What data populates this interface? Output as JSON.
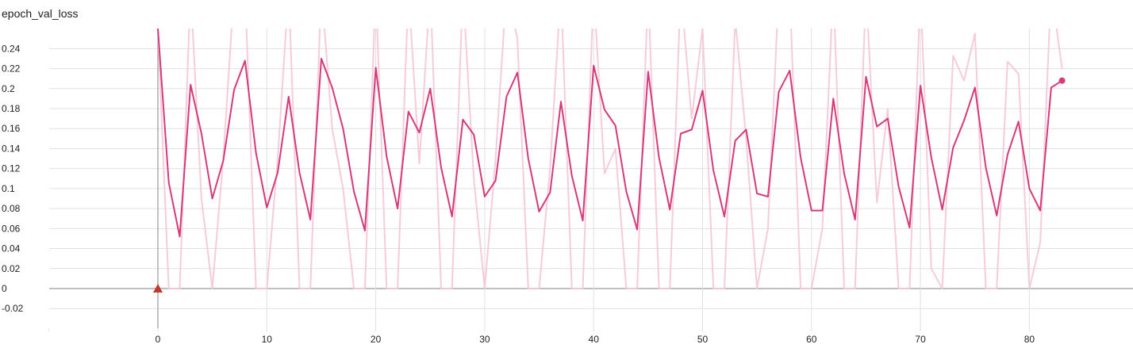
{
  "chart_data": {
    "type": "line",
    "title": "epoch_val_loss",
    "xlabel": "",
    "ylabel": "",
    "xlim": [
      -10,
      90
    ],
    "ylim": [
      -0.04,
      0.26
    ],
    "x_ticks": [
      0,
      10,
      20,
      30,
      40,
      50,
      60,
      70,
      80
    ],
    "y_ticks": [
      -0.02,
      0,
      0.02,
      0.04,
      0.06,
      0.08,
      0.1,
      0.12,
      0.14,
      0.16,
      0.18,
      0.2,
      0.22,
      0.24
    ],
    "y_tick_labels": [
      "-0.02",
      "0",
      "0.02",
      "0.04",
      "0.06",
      "0.08",
      "0.1",
      "0.12",
      "0.14",
      "0.16",
      "0.18",
      "0.2",
      "0.22",
      "0.24"
    ],
    "grid": true,
    "colors": {
      "smoothed": "#d63a79",
      "raw": "#f5c6d6",
      "axis": "#999999",
      "grid": "#e0e0e0",
      "marker": "#c0392b"
    },
    "series": [
      {
        "role": "smoothed",
        "x": [
          0,
          1,
          2,
          3,
          4,
          5,
          6,
          7,
          8,
          9,
          10,
          11,
          12,
          13,
          14,
          15,
          16,
          17,
          18,
          19,
          20,
          21,
          22,
          23,
          24,
          25,
          26,
          27,
          28,
          29,
          30,
          31,
          32,
          33,
          34,
          35,
          36,
          37,
          38,
          39,
          40,
          41,
          42,
          43,
          44,
          45,
          46,
          47,
          48,
          49,
          50,
          51,
          52,
          53,
          54,
          55,
          56,
          57,
          58,
          59,
          60,
          61,
          62,
          63,
          64,
          65,
          66,
          67,
          68,
          69,
          70,
          71,
          72,
          73,
          74,
          75,
          76,
          77,
          78,
          79,
          80,
          81,
          82,
          83
        ],
        "values": [
          0.26,
          0.106,
          0.052,
          0.204,
          0.155,
          0.09,
          0.128,
          0.199,
          0.228,
          0.136,
          0.081,
          0.116,
          0.192,
          0.116,
          0.069,
          0.23,
          0.201,
          0.16,
          0.097,
          0.058,
          0.221,
          0.132,
          0.08,
          0.177,
          0.156,
          0.2,
          0.121,
          0.072,
          0.169,
          0.154,
          0.092,
          0.108,
          0.192,
          0.216,
          0.13,
          0.077,
          0.096,
          0.187,
          0.113,
          0.068,
          0.223,
          0.179,
          0.163,
          0.097,
          0.059,
          0.217,
          0.131,
          0.079,
          0.155,
          0.159,
          0.198,
          0.118,
          0.072,
          0.148,
          0.159,
          0.095,
          0.092,
          0.197,
          0.218,
          0.131,
          0.078,
          0.078,
          0.19,
          0.115,
          0.069,
          0.212,
          0.162,
          0.17,
          0.102,
          0.061,
          0.203,
          0.131,
          0.079,
          0.141,
          0.168,
          0.201,
          0.121,
          0.073,
          0.134,
          0.167,
          0.1,
          0.078,
          0.201,
          0.208
        ]
      },
      {
        "role": "raw",
        "x": [
          0,
          1,
          2,
          3,
          4,
          5,
          6,
          7,
          8,
          9,
          10,
          11,
          12,
          13,
          14,
          15,
          16,
          17,
          18,
          19,
          20,
          21,
          22,
          23,
          24,
          25,
          26,
          27,
          28,
          29,
          30,
          31,
          32,
          33,
          34,
          35,
          36,
          37,
          38,
          39,
          40,
          41,
          42,
          43,
          44,
          45,
          46,
          47,
          48,
          49,
          50,
          51,
          52,
          53,
          54,
          55,
          56,
          57,
          58,
          59,
          60,
          61,
          62,
          63,
          64,
          65,
          66,
          67,
          68,
          69,
          70,
          71,
          72,
          73,
          74,
          75,
          76,
          77,
          78,
          79,
          80,
          81,
          82,
          83
        ],
        "values": [
          0.26,
          0,
          0,
          0.3,
          0.09,
          0,
          0.13,
          0.3,
          0.3,
          0,
          0,
          0.13,
          0.3,
          0,
          0,
          0.3,
          0.16,
          0.1,
          0,
          0,
          0.3,
          0,
          0,
          0.3,
          0.125,
          0.3,
          0,
          0,
          0.3,
          0.11,
          0,
          0.13,
          0.3,
          0.25,
          0,
          0,
          0.12,
          0.3,
          0,
          0,
          0.3,
          0.115,
          0.14,
          0,
          0,
          0.3,
          0,
          0,
          0.3,
          0.17,
          0.26,
          0,
          0,
          0.27,
          0.15,
          0,
          0.06,
          0.3,
          0.3,
          0,
          0,
          0.06,
          0.3,
          0,
          0,
          0.3,
          0.086,
          0.18,
          0,
          0,
          0.3,
          0.02,
          0,
          0.233,
          0.208,
          0.255,
          0,
          0,
          0.227,
          0.215,
          0,
          0.046,
          0.3,
          0.22
        ]
      }
    ]
  }
}
